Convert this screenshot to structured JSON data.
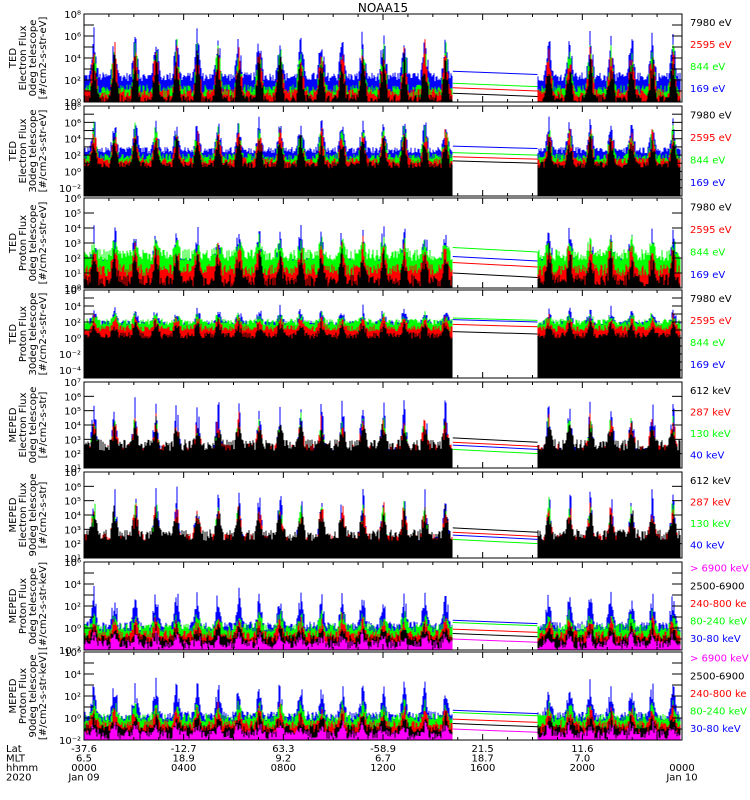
{
  "chart_data": {
    "type": "line",
    "title": "NOAA15",
    "x_axis": {
      "range_hours": [
        0,
        24
      ],
      "row_labels": [
        "Lat",
        "MLT",
        "hhmm",
        "2020"
      ],
      "ticks": [
        {
          "hour": 0,
          "lat": "-37.6",
          "mlt": "6.5",
          "hhmm": "0000",
          "date": "Jan 09"
        },
        {
          "hour": 4,
          "lat": "-12.7",
          "mlt": "18.9",
          "hhmm": "0400",
          "date": ""
        },
        {
          "hour": 8,
          "lat": "63.3",
          "mlt": "9.2",
          "hhmm": "0800",
          "date": ""
        },
        {
          "hour": 12,
          "lat": "-58.9",
          "mlt": "6.7",
          "hhmm": "1200",
          "date": ""
        },
        {
          "hour": 16,
          "lat": "21.5",
          "mlt": "18.7",
          "hhmm": "1600",
          "date": ""
        },
        {
          "hour": 20,
          "lat": "11.6",
          "mlt": "7.0",
          "hhmm": "2000",
          "date": ""
        },
        {
          "hour": 24,
          "lat": "",
          "mlt": "",
          "hhmm": "0000",
          "date": "Jan 10"
        }
      ],
      "data_gap_hours": [
        14.8,
        18.2
      ]
    },
    "panels": [
      {
        "ylabel": [
          "TED",
          "Electron Flux",
          "0deg telescope",
          "[#/cm2-s-str-eV]"
        ],
        "yscale": "log",
        "ylim_exp": [
          0,
          8
        ],
        "ytick_labels": [
          {
            "exp": 0,
            "label": "10⁰"
          },
          {
            "exp": 2,
            "label": "10²"
          },
          {
            "exp": 4,
            "label": "10⁴"
          },
          {
            "exp": 6,
            "label": "10⁶"
          },
          {
            "exp": 8,
            "label": "10⁸"
          }
        ],
        "series": [
          {
            "name": "7980 eV",
            "color": "#000000",
            "base_exp": 0.3,
            "peak_exp": 4.5
          },
          {
            "name": "2595 eV",
            "color": "#ff0000",
            "base_exp": 0.8,
            "peak_exp": 5.2
          },
          {
            "name": "844 eV",
            "color": "#00ff00",
            "base_exp": 1.2,
            "peak_exp": 5.5
          },
          {
            "name": "169 eV",
            "color": "#0000ff",
            "base_exp": 2.3,
            "peak_exp": 6.5
          }
        ]
      },
      {
        "ylabel": [
          "TED",
          "Electron Flux",
          "30deg telescope",
          "[#/cm2-s-str-eV]"
        ],
        "yscale": "log",
        "ylim_exp": [
          -3,
          8
        ],
        "ytick_labels": [
          {
            "exp": -2,
            "label": "10⁻²"
          },
          {
            "exp": 0,
            "label": "10⁰"
          },
          {
            "exp": 2,
            "label": "10²"
          },
          {
            "exp": 4,
            "label": "10⁴"
          },
          {
            "exp": 6,
            "label": "10⁶"
          },
          {
            "exp": 8,
            "label": "10⁸"
          }
        ],
        "series": [
          {
            "name": "7980 eV",
            "color": "#000000",
            "base_exp": 0.8,
            "peak_exp": 4.5
          },
          {
            "name": "2595 eV",
            "color": "#ff0000",
            "base_exp": 1.3,
            "peak_exp": 5.5
          },
          {
            "name": "844 eV",
            "color": "#00ff00",
            "base_exp": 1.8,
            "peak_exp": 5.8
          },
          {
            "name": "169 eV",
            "color": "#0000ff",
            "base_exp": 2.6,
            "peak_exp": 6.5
          }
        ]
      },
      {
        "ylabel": [
          "TED",
          "Proton Flux",
          "0deg telescope",
          "[#/cm2-s-str-eV]"
        ],
        "yscale": "log",
        "ylim_exp": [
          0,
          6
        ],
        "ytick_labels": [
          {
            "exp": 0,
            "label": "10⁰"
          },
          {
            "exp": 1,
            "label": "10¹"
          },
          {
            "exp": 2,
            "label": "10²"
          },
          {
            "exp": 3,
            "label": "10³"
          },
          {
            "exp": 4,
            "label": "10⁴"
          },
          {
            "exp": 5,
            "label": "10⁵"
          },
          {
            "exp": 6,
            "label": "10⁶"
          }
        ],
        "series": [
          {
            "name": "7980 eV",
            "color": "#000000",
            "base_exp": 0.5,
            "peak_exp": 2.5
          },
          {
            "name": "2595 eV",
            "color": "#ff0000",
            "base_exp": 1.2,
            "peak_exp": 3.0
          },
          {
            "name": "844 eV",
            "color": "#00ff00",
            "base_exp": 2.2,
            "peak_exp": 3.3
          },
          {
            "name": "169 eV",
            "color": "#0000ff",
            "base_exp": 1.6,
            "peak_exp": 4.0
          }
        ]
      },
      {
        "ylabel": [
          "TED",
          "Proton Flux",
          "30deg telescope",
          "[#/cm2-s-str-eV]"
        ],
        "yscale": "log",
        "ylim_exp": [
          -5,
          6
        ],
        "ytick_labels": [
          {
            "exp": -4,
            "label": "10⁻⁴"
          },
          {
            "exp": -2,
            "label": "10⁻²"
          },
          {
            "exp": 0,
            "label": "10⁰"
          },
          {
            "exp": 2,
            "label": "10²"
          },
          {
            "exp": 4,
            "label": "10⁴"
          },
          {
            "exp": 6,
            "label": "10⁶"
          }
        ],
        "series": [
          {
            "name": "7980 eV",
            "color": "#000000",
            "base_exp": 0.3,
            "peak_exp": 2.2
          },
          {
            "name": "2595 eV",
            "color": "#ff0000",
            "base_exp": 1.2,
            "peak_exp": 2.8
          },
          {
            "name": "844 eV",
            "color": "#00ff00",
            "base_exp": 2.0,
            "peak_exp": 3.0
          },
          {
            "name": "169 eV",
            "color": "#0000ff",
            "base_exp": 1.8,
            "peak_exp": 3.8
          }
        ]
      },
      {
        "ylabel": [
          "MEPED",
          "Electron Flux",
          "0deg telescope",
          "[#/cm2-s-str]"
        ],
        "yscale": "log",
        "ylim_exp": [
          1,
          7
        ],
        "ytick_labels": [
          {
            "exp": 1,
            "label": "10¹"
          },
          {
            "exp": 2,
            "label": "10²"
          },
          {
            "exp": 3,
            "label": "10³"
          },
          {
            "exp": 4,
            "label": "10⁴"
          },
          {
            "exp": 5,
            "label": "10⁵"
          },
          {
            "exp": 6,
            "label": "10⁶"
          },
          {
            "exp": 7,
            "label": "10⁷"
          }
        ],
        "series": [
          {
            "name": "612 keV",
            "color": "#000000",
            "base_exp": 2.6,
            "peak_exp": 4.2
          },
          {
            "name": "287 keV",
            "color": "#ff0000",
            "base_exp": 2.3,
            "peak_exp": 4.5
          },
          {
            "name": "130 keV",
            "color": "#00ff00",
            "base_exp": 1.8,
            "peak_exp": 4.7
          },
          {
            "name": "40 keV",
            "color": "#0000ff",
            "base_exp": 2.1,
            "peak_exp": 5.8
          }
        ]
      },
      {
        "ylabel": [
          "MEPED",
          "Electron Flux",
          "90deg telescope",
          "[#/cm2-s-str]"
        ],
        "yscale": "log",
        "ylim_exp": [
          1,
          7
        ],
        "ytick_labels": [
          {
            "exp": 1,
            "label": "10¹"
          },
          {
            "exp": 2,
            "label": "10²"
          },
          {
            "exp": 3,
            "label": "10³"
          },
          {
            "exp": 4,
            "label": "10⁴"
          },
          {
            "exp": 5,
            "label": "10⁵"
          },
          {
            "exp": 6,
            "label": "10⁶"
          },
          {
            "exp": 7,
            "label": "10⁷"
          }
        ],
        "series": [
          {
            "name": "612 keV",
            "color": "#000000",
            "base_exp": 2.6,
            "peak_exp": 4.5
          },
          {
            "name": "287 keV",
            "color": "#ff0000",
            "base_exp": 2.3,
            "peak_exp": 4.8
          },
          {
            "name": "130 keV",
            "color": "#00ff00",
            "base_exp": 1.8,
            "peak_exp": 5.0
          },
          {
            "name": "40 keV",
            "color": "#0000ff",
            "base_exp": 2.1,
            "peak_exp": 5.8
          }
        ]
      },
      {
        "ylabel": [
          "MEPED",
          "Proton Flux",
          "0deg telescope",
          "[#/cm2-s-str-keV]"
        ],
        "yscale": "log",
        "ylim_exp": [
          -2,
          6
        ],
        "ytick_labels": [
          {
            "exp": -2,
            "label": "10⁻²"
          },
          {
            "exp": 0,
            "label": "10⁰"
          },
          {
            "exp": 2,
            "label": "10²"
          },
          {
            "exp": 4,
            "label": "10⁴"
          },
          {
            "exp": 6,
            "label": "10⁶"
          }
        ],
        "series": [
          {
            "name": "> 6900 keV",
            "color": "#ff00ff",
            "base_exp": -1.5,
            "peak_exp": -0.5
          },
          {
            "name": "2500-6900",
            "color": "#000000",
            "base_exp": -1.0,
            "peak_exp": 0.3
          },
          {
            "name": "240-800 ke",
            "color": "#ff0000",
            "base_exp": -0.6,
            "peak_exp": 1.0
          },
          {
            "name": "80-240 keV",
            "color": "#00ff00",
            "base_exp": 0.0,
            "peak_exp": 1.5
          },
          {
            "name": "30-80 keV",
            "color": "#0000ff",
            "base_exp": 0.2,
            "peak_exp": 3.5
          }
        ]
      },
      {
        "ylabel": [
          "MEPED",
          "Proton Flux",
          "90deg telescope",
          "[#/cm2-s-str-keV]"
        ],
        "yscale": "log",
        "ylim_exp": [
          -2,
          6
        ],
        "ytick_labels": [
          {
            "exp": -2,
            "label": "10⁻²"
          },
          {
            "exp": 0,
            "label": "10⁰"
          },
          {
            "exp": 2,
            "label": "10²"
          },
          {
            "exp": 4,
            "label": "10⁴"
          },
          {
            "exp": 6,
            "label": "10⁶"
          }
        ],
        "series": [
          {
            "name": "> 6900 keV",
            "color": "#ff00ff",
            "base_exp": -1.5,
            "peak_exp": -0.5
          },
          {
            "name": "2500-6900",
            "color": "#000000",
            "base_exp": -1.0,
            "peak_exp": 0.3
          },
          {
            "name": "240-800 ke",
            "color": "#ff0000",
            "base_exp": -0.6,
            "peak_exp": 1.0
          },
          {
            "name": "80-240 keV",
            "color": "#00ff00",
            "base_exp": 0.0,
            "peak_exp": 1.5
          },
          {
            "name": "30-80 keV",
            "color": "#0000ff",
            "base_exp": 0.2,
            "peak_exp": 3.3
          }
        ]
      }
    ]
  }
}
